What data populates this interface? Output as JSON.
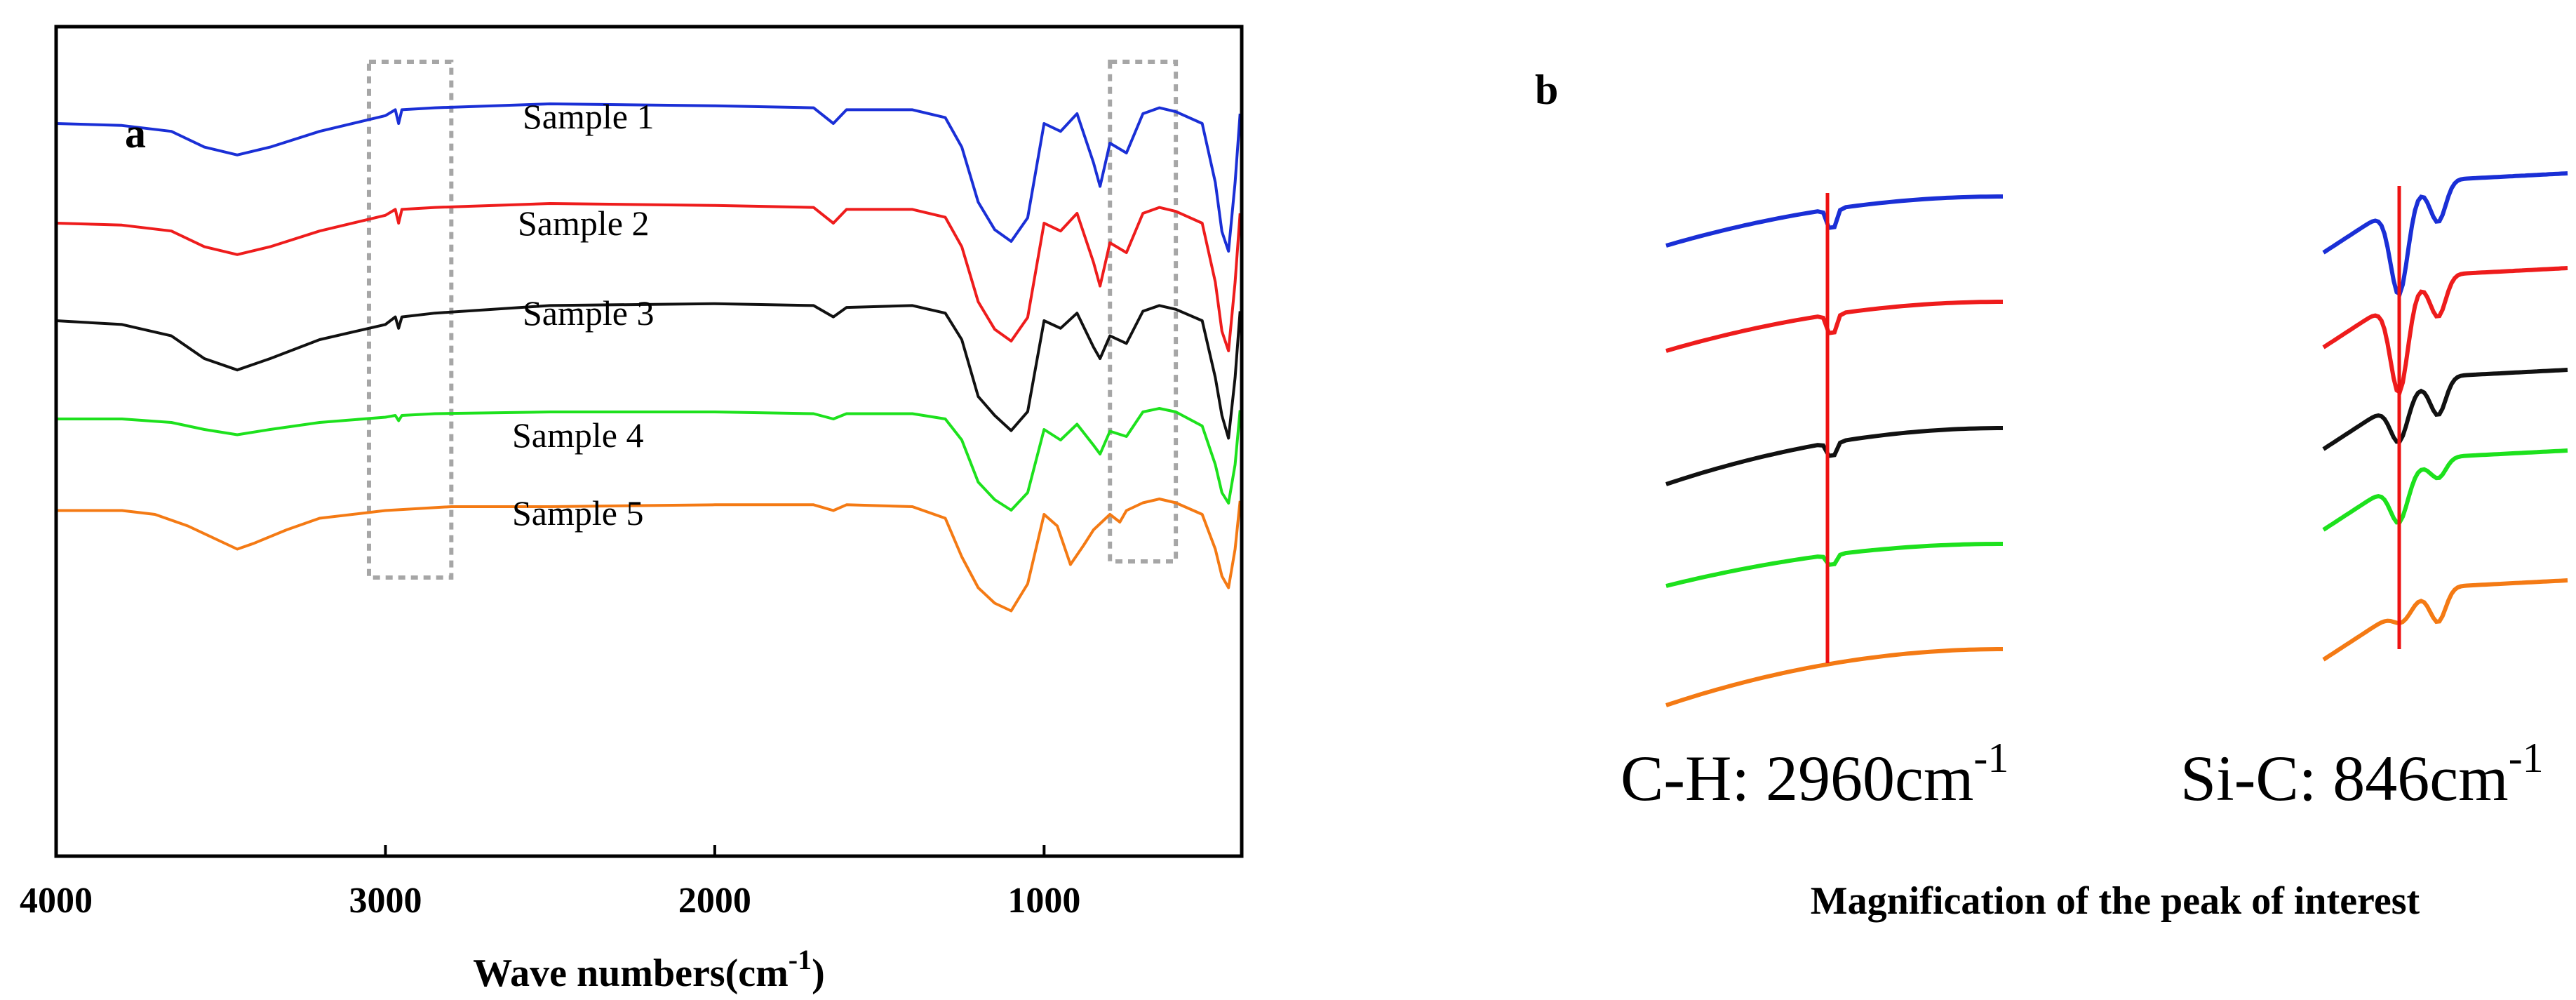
{
  "colors": {
    "s1": "#1a2fd6",
    "s2": "#ee1c1c",
    "s3": "#111111",
    "s4": "#1de11d",
    "s5": "#f47a14",
    "marker": "#ee1111",
    "box": "#a6a6a6"
  },
  "chart_data": [
    {
      "type": "line",
      "panel_label": "a",
      "xlabel_main": "Wave numbers(cm",
      "xlabel_sup": "-1",
      "xlabel_tail": ")",
      "xlim": [
        4000,
        400
      ],
      "x_reversed": true,
      "xticks": [
        4000,
        3000,
        2000,
        1000
      ],
      "y_axis": "transmittance (offset, unlabeled)",
      "highlight_regions": [
        [
          3050,
          2800
        ],
        [
          800,
          600
        ]
      ],
      "series": [
        {
          "name": "Sample 1",
          "offset": 0,
          "color_key": "s1",
          "x": [
            4000,
            3800,
            3650,
            3550,
            3450,
            3350,
            3200,
            3000,
            2970,
            2960,
            2950,
            2850,
            2500,
            2000,
            1700,
            1640,
            1600,
            1400,
            1300,
            1250,
            1200,
            1150,
            1100,
            1050,
            1000,
            950,
            900,
            850,
            830,
            800,
            750,
            700,
            650,
            600,
            520,
            480,
            460,
            440,
            420,
            405
          ],
          "y": [
            10,
            11,
            14,
            22,
            26,
            22,
            14,
            6,
            3,
            10,
            3,
            2,
            0,
            1,
            2,
            10,
            3,
            3,
            7,
            22,
            50,
            64,
            70,
            58,
            10,
            14,
            5,
            30,
            42,
            20,
            25,
            5,
            2,
            4,
            10,
            40,
            65,
            75,
            40,
            5
          ]
        },
        {
          "name": "Sample 2",
          "offset": 0,
          "color_key": "s2",
          "x": [
            4000,
            3800,
            3650,
            3550,
            3450,
            3350,
            3200,
            3000,
            2970,
            2960,
            2950,
            2850,
            2500,
            2000,
            1700,
            1640,
            1600,
            1400,
            1300,
            1250,
            1200,
            1150,
            1100,
            1050,
            1000,
            950,
            900,
            850,
            830,
            800,
            750,
            700,
            650,
            600,
            520,
            480,
            460,
            440,
            420,
            405
          ],
          "y": [
            10,
            11,
            14,
            22,
            26,
            22,
            14,
            6,
            3,
            10,
            3,
            2,
            0,
            1,
            2,
            10,
            3,
            3,
            7,
            22,
            50,
            64,
            70,
            58,
            10,
            14,
            5,
            30,
            42,
            20,
            25,
            5,
            2,
            4,
            10,
            40,
            65,
            75,
            40,
            5
          ]
        },
        {
          "name": "Sample 3",
          "offset": 0,
          "color_key": "s3",
          "x": [
            4000,
            3800,
            3650,
            3550,
            3450,
            3350,
            3200,
            3000,
            2970,
            2960,
            2950,
            2850,
            2500,
            2000,
            1700,
            1640,
            1600,
            1400,
            1300,
            1250,
            1200,
            1150,
            1100,
            1050,
            1000,
            950,
            900,
            850,
            830,
            800,
            750,
            700,
            650,
            600,
            520,
            480,
            460,
            440,
            420,
            405
          ],
          "y": [
            10,
            12,
            18,
            30,
            36,
            30,
            20,
            12,
            8,
            14,
            8,
            6,
            2,
            1,
            2,
            8,
            3,
            2,
            6,
            20,
            50,
            60,
            68,
            58,
            10,
            14,
            6,
            24,
            30,
            18,
            22,
            5,
            2,
            4,
            10,
            40,
            60,
            72,
            40,
            5
          ]
        },
        {
          "name": "Sample 4",
          "offset": 0,
          "color_key": "s4",
          "x": [
            4000,
            3800,
            3650,
            3550,
            3450,
            3350,
            3200,
            3000,
            2970,
            2960,
            2950,
            2850,
            2500,
            2000,
            1700,
            1640,
            1600,
            1400,
            1300,
            1250,
            1200,
            1150,
            1100,
            1050,
            1000,
            950,
            900,
            850,
            830,
            800,
            750,
            700,
            650,
            600,
            520,
            480,
            460,
            440,
            420,
            405
          ],
          "y": [
            10,
            10,
            12,
            16,
            19,
            16,
            12,
            9,
            8,
            11,
            8,
            7,
            6,
            6,
            7,
            10,
            7,
            7,
            10,
            22,
            46,
            56,
            62,
            52,
            16,
            22,
            13,
            25,
            30,
            17,
            20,
            6,
            4,
            6,
            14,
            36,
            52,
            58,
            36,
            5
          ]
        },
        {
          "name": "Sample 5",
          "offset": 0,
          "color_key": "s5",
          "x": [
            4000,
            3800,
            3700,
            3600,
            3500,
            3450,
            3400,
            3300,
            3200,
            3000,
            2800,
            2500,
            2000,
            1700,
            1640,
            1600,
            1400,
            1300,
            1250,
            1200,
            1150,
            1100,
            1050,
            1000,
            960,
            920,
            880,
            850,
            800,
            770,
            750,
            700,
            650,
            600,
            520,
            480,
            460,
            440,
            420,
            405
          ],
          "y": [
            10,
            10,
            12,
            18,
            26,
            30,
            27,
            20,
            14,
            10,
            8,
            8,
            7,
            7,
            10,
            7,
            8,
            14,
            34,
            50,
            58,
            62,
            48,
            12,
            18,
            38,
            28,
            20,
            12,
            16,
            10,
            6,
            4,
            6,
            12,
            30,
            44,
            50,
            30,
            5
          ]
        }
      ]
    },
    {
      "type": "line",
      "panel_label": "b",
      "title": "Magnification of the peak of interest",
      "insets": [
        {
          "label_main": "C-H: 2960cm",
          "label_sup": "-1",
          "marker_position": 2960,
          "series_names": [
            "Sample 1",
            "Sample 2",
            "Sample 3",
            "Sample 4",
            "Sample 5"
          ]
        },
        {
          "label_main": "Si-C: 846cm",
          "label_sup": "-1",
          "marker_position": 846,
          "series_names": [
            "Sample 1",
            "Sample 2",
            "Sample 3",
            "Sample 4",
            "Sample 5"
          ]
        }
      ]
    }
  ]
}
